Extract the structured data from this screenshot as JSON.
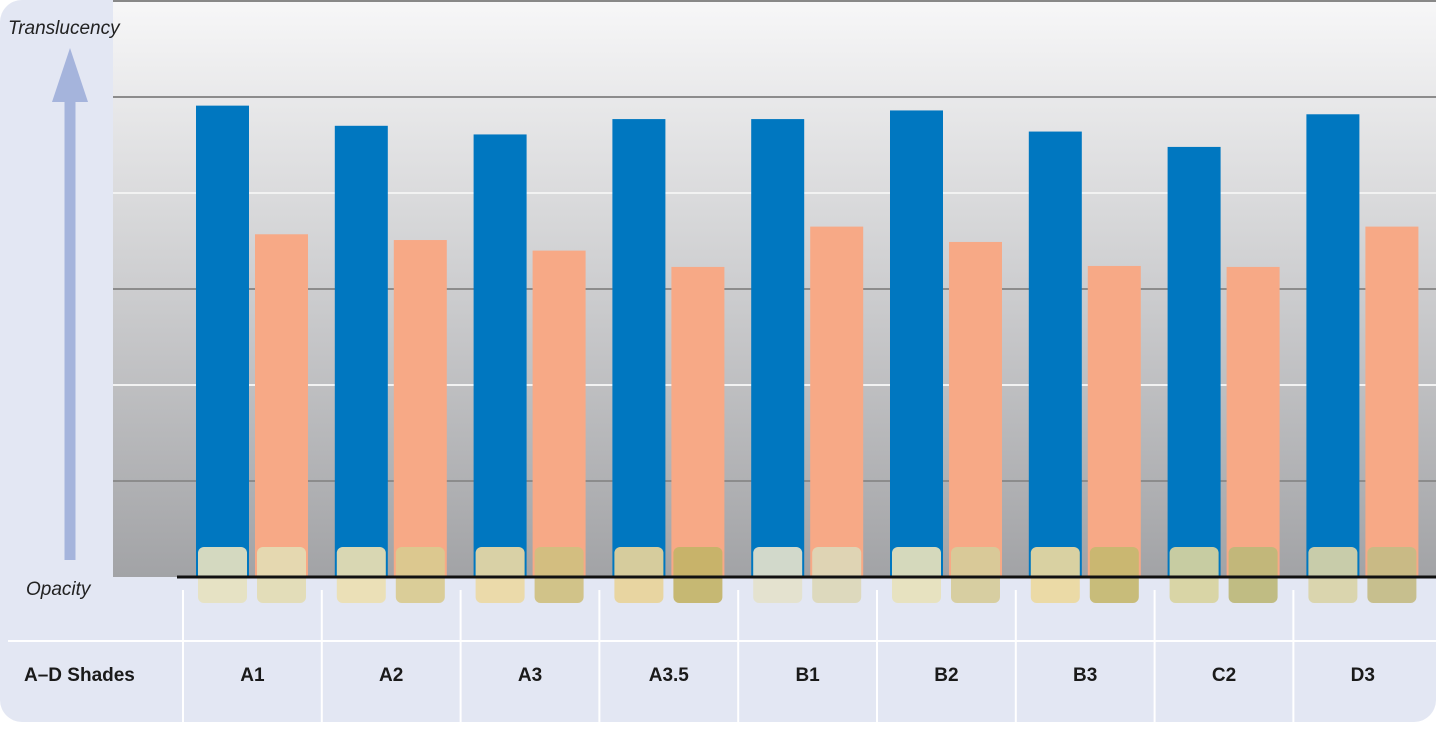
{
  "chart_data": {
    "type": "bar",
    "y_top_label": "Translucency",
    "y_bottom_label": "Opacity",
    "category_header": "A–D Shades",
    "categories": [
      "A1",
      "A2",
      "A3",
      "A3.5",
      "B1",
      "B2",
      "B3",
      "C2",
      "D3"
    ],
    "series": [
      {
        "color": "#0077c0",
        "values": [
          4.91,
          4.7,
          4.61,
          4.77,
          4.77,
          4.86,
          4.64,
          4.48,
          4.82
        ]
      },
      {
        "color": "#f7a986",
        "values": [
          3.57,
          3.51,
          3.4,
          3.23,
          3.65,
          3.49,
          3.24,
          3.23,
          3.65
        ]
      }
    ],
    "ylim": [
      0,
      6
    ],
    "yticks": [
      1,
      2,
      3,
      4,
      5
    ],
    "grid": true
  }
}
